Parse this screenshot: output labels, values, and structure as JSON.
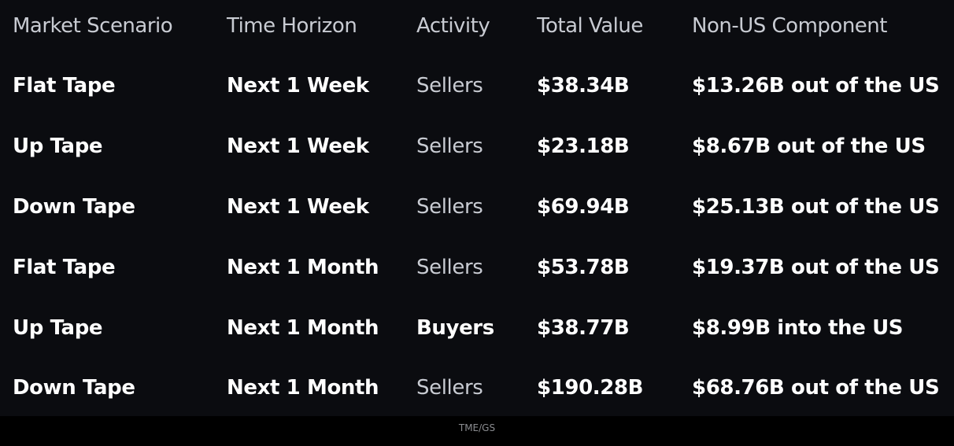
{
  "table": {
    "headers": [
      "Market Scenario",
      "Time Horizon",
      "Activity",
      "Total Value",
      "Non-US Component"
    ],
    "rows": [
      [
        "Flat Tape",
        "Next 1 Week",
        "Sellers",
        "$38.34B",
        "$13.26B out of the US"
      ],
      [
        "Up Tape",
        "Next 1 Week",
        "Sellers",
        "$23.18B",
        "$8.67B out of the US"
      ],
      [
        "Down Tape",
        "Next 1 Week",
        "Sellers",
        "$69.94B",
        "$25.13B out of the US"
      ],
      [
        "Flat Tape",
        "Next 1 Month",
        "Sellers",
        "$53.78B",
        "$19.37B out of the US"
      ],
      [
        "Up Tape",
        "Next 1 Month",
        "Buyers",
        "$38.77B",
        "$8.99B into the US"
      ],
      [
        "Down Tape",
        "Next 1 Month",
        "Sellers",
        "$190.28B",
        "$68.76B out of the US"
      ]
    ]
  },
  "source": "TME/GS"
}
